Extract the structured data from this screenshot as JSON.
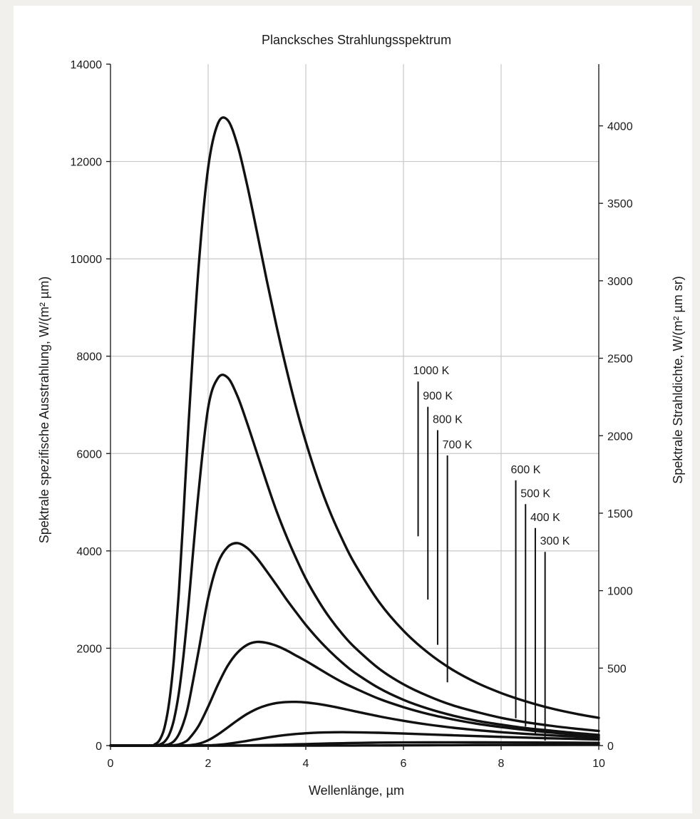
{
  "chart_data": {
    "type": "line",
    "title": "Plancksches Strahlungsspektrum",
    "xlabel": "Wellenlänge, µm",
    "ylabel": "Spektrale spezifische Ausstrahlung, W/(m² µm)",
    "y2label": "Spektrale Strahldichte, W/(m² µm sr)",
    "xlim": [
      0,
      10
    ],
    "ylim": [
      0,
      14000
    ],
    "y2lim": [
      0,
      4398.2
    ],
    "xticks": [
      0,
      2,
      4,
      6,
      8,
      10
    ],
    "yticks": [
      0,
      2000,
      4000,
      6000,
      8000,
      10000,
      12000,
      14000
    ],
    "y2ticks": [
      0,
      500,
      1000,
      1500,
      2000,
      2500,
      3000,
      3500,
      4000
    ],
    "grid": true,
    "x": [
      0.8,
      0.9,
      1.0,
      1.1,
      1.2,
      1.3,
      1.4,
      1.5,
      1.6,
      1.8,
      2.0,
      2.2,
      2.4,
      2.6,
      2.8,
      3.0,
      3.2,
      3.4,
      3.6,
      3.8,
      4.0,
      4.25,
      4.5,
      4.75,
      5.0,
      5.5,
      6.0,
      6.5,
      7.0,
      7.5,
      8.0,
      8.5,
      9.0,
      9.5,
      10.0
    ],
    "series": [
      {
        "name": "1000 K",
        "values": [
          3,
          22,
          106,
          348,
          877,
          1800,
          3150,
          4850,
          6630,
          9770,
          11870,
          12780,
          12850,
          12340,
          11510,
          10550,
          9560,
          8620,
          7750,
          6950,
          6240,
          5460,
          4790,
          4230,
          3740,
          2950,
          2360,
          1910,
          1560,
          1290,
          1080,
          910,
          770,
          660,
          570
        ]
      },
      {
        "name": "900 K",
        "values": [
          0,
          3,
          18,
          73,
          219,
          534,
          1080,
          1900,
          2920,
          5170,
          6940,
          7550,
          7560,
          7180,
          6620,
          6010,
          5400,
          4820,
          4310,
          3850,
          3430,
          2990,
          2610,
          2290,
          2020,
          1580,
          1260,
          1020,
          830,
          690,
          570,
          480,
          410,
          350,
          300
        ]
      },
      {
        "name": "800 K",
        "values": [
          0,
          0,
          1,
          7,
          28,
          91,
          233,
          484,
          860,
          1920,
          3030,
          3750,
          4080,
          4160,
          4060,
          3850,
          3580,
          3300,
          3010,
          2740,
          2480,
          2190,
          1930,
          1700,
          1500,
          1180,
          940,
          760,
          620,
          510,
          430,
          360,
          310,
          260,
          220
        ]
      },
      {
        "name": "700 K",
        "values": [
          0,
          0,
          0,
          0,
          1,
          7,
          24,
          62,
          132,
          397,
          800,
          1250,
          1640,
          1910,
          2070,
          2130,
          2110,
          2050,
          1960,
          1850,
          1740,
          1590,
          1440,
          1300,
          1180,
          960,
          790,
          650,
          540,
          450,
          380,
          320,
          270,
          230,
          200
        ]
      },
      {
        "name": "600 K",
        "values": [
          0,
          0,
          0,
          0,
          0,
          0,
          0,
          2,
          6,
          36,
          110,
          228,
          372,
          519,
          651,
          755,
          828,
          874,
          895,
          898,
          886,
          855,
          811,
          760,
          706,
          600,
          509,
          432,
          369,
          318,
          275,
          240,
          211,
          187,
          166
        ]
      },
      {
        "name": "500 K",
        "values": [
          0,
          0,
          0,
          0,
          0,
          0,
          0,
          0,
          0,
          1,
          5,
          16,
          36,
          64,
          97,
          131,
          164,
          193,
          218,
          238,
          253,
          267,
          273,
          275,
          273,
          263,
          248,
          230,
          212,
          195,
          179,
          164,
          150,
          137,
          126
        ]
      },
      {
        "name": "400 K",
        "values": [
          0,
          0,
          0,
          0,
          0,
          0,
          0,
          0,
          0,
          0,
          0,
          0,
          1,
          2,
          4,
          7,
          11,
          15,
          20,
          26,
          31,
          38,
          44,
          49,
          54,
          61,
          65,
          67,
          67,
          66,
          65,
          63,
          61,
          58,
          55
        ]
      },
      {
        "name": "300 K",
        "values": [
          0,
          0,
          0,
          0,
          0,
          0,
          0,
          0,
          0,
          0,
          0,
          0,
          0,
          0,
          0,
          0,
          0,
          0,
          0,
          0,
          0,
          0,
          1,
          1,
          2,
          3,
          5,
          7,
          9,
          11,
          13,
          15,
          16,
          17,
          18
        ]
      }
    ],
    "annotations": [
      {
        "text": "1000 K",
        "x": 6.3,
        "y_top": 7480,
        "y_bottom": 4300
      },
      {
        "text": "900 K",
        "x": 6.5,
        "y_top": 6960,
        "y_bottom": 3000
      },
      {
        "text": "800 K",
        "x": 6.7,
        "y_top": 6480,
        "y_bottom": 2070
      },
      {
        "text": "700 K",
        "x": 6.9,
        "y_top": 5960,
        "y_bottom": 1300
      },
      {
        "text": "600 K",
        "x": 8.3,
        "y_top": 5450,
        "y_bottom": 560
      },
      {
        "text": "500 K",
        "x": 8.5,
        "y_top": 4960,
        "y_bottom": 390
      },
      {
        "text": "400 K",
        "x": 8.7,
        "y_top": 4470,
        "y_bottom": 250
      },
      {
        "text": "300 K",
        "x": 8.9,
        "y_top": 3980,
        "y_bottom": 100
      }
    ]
  }
}
